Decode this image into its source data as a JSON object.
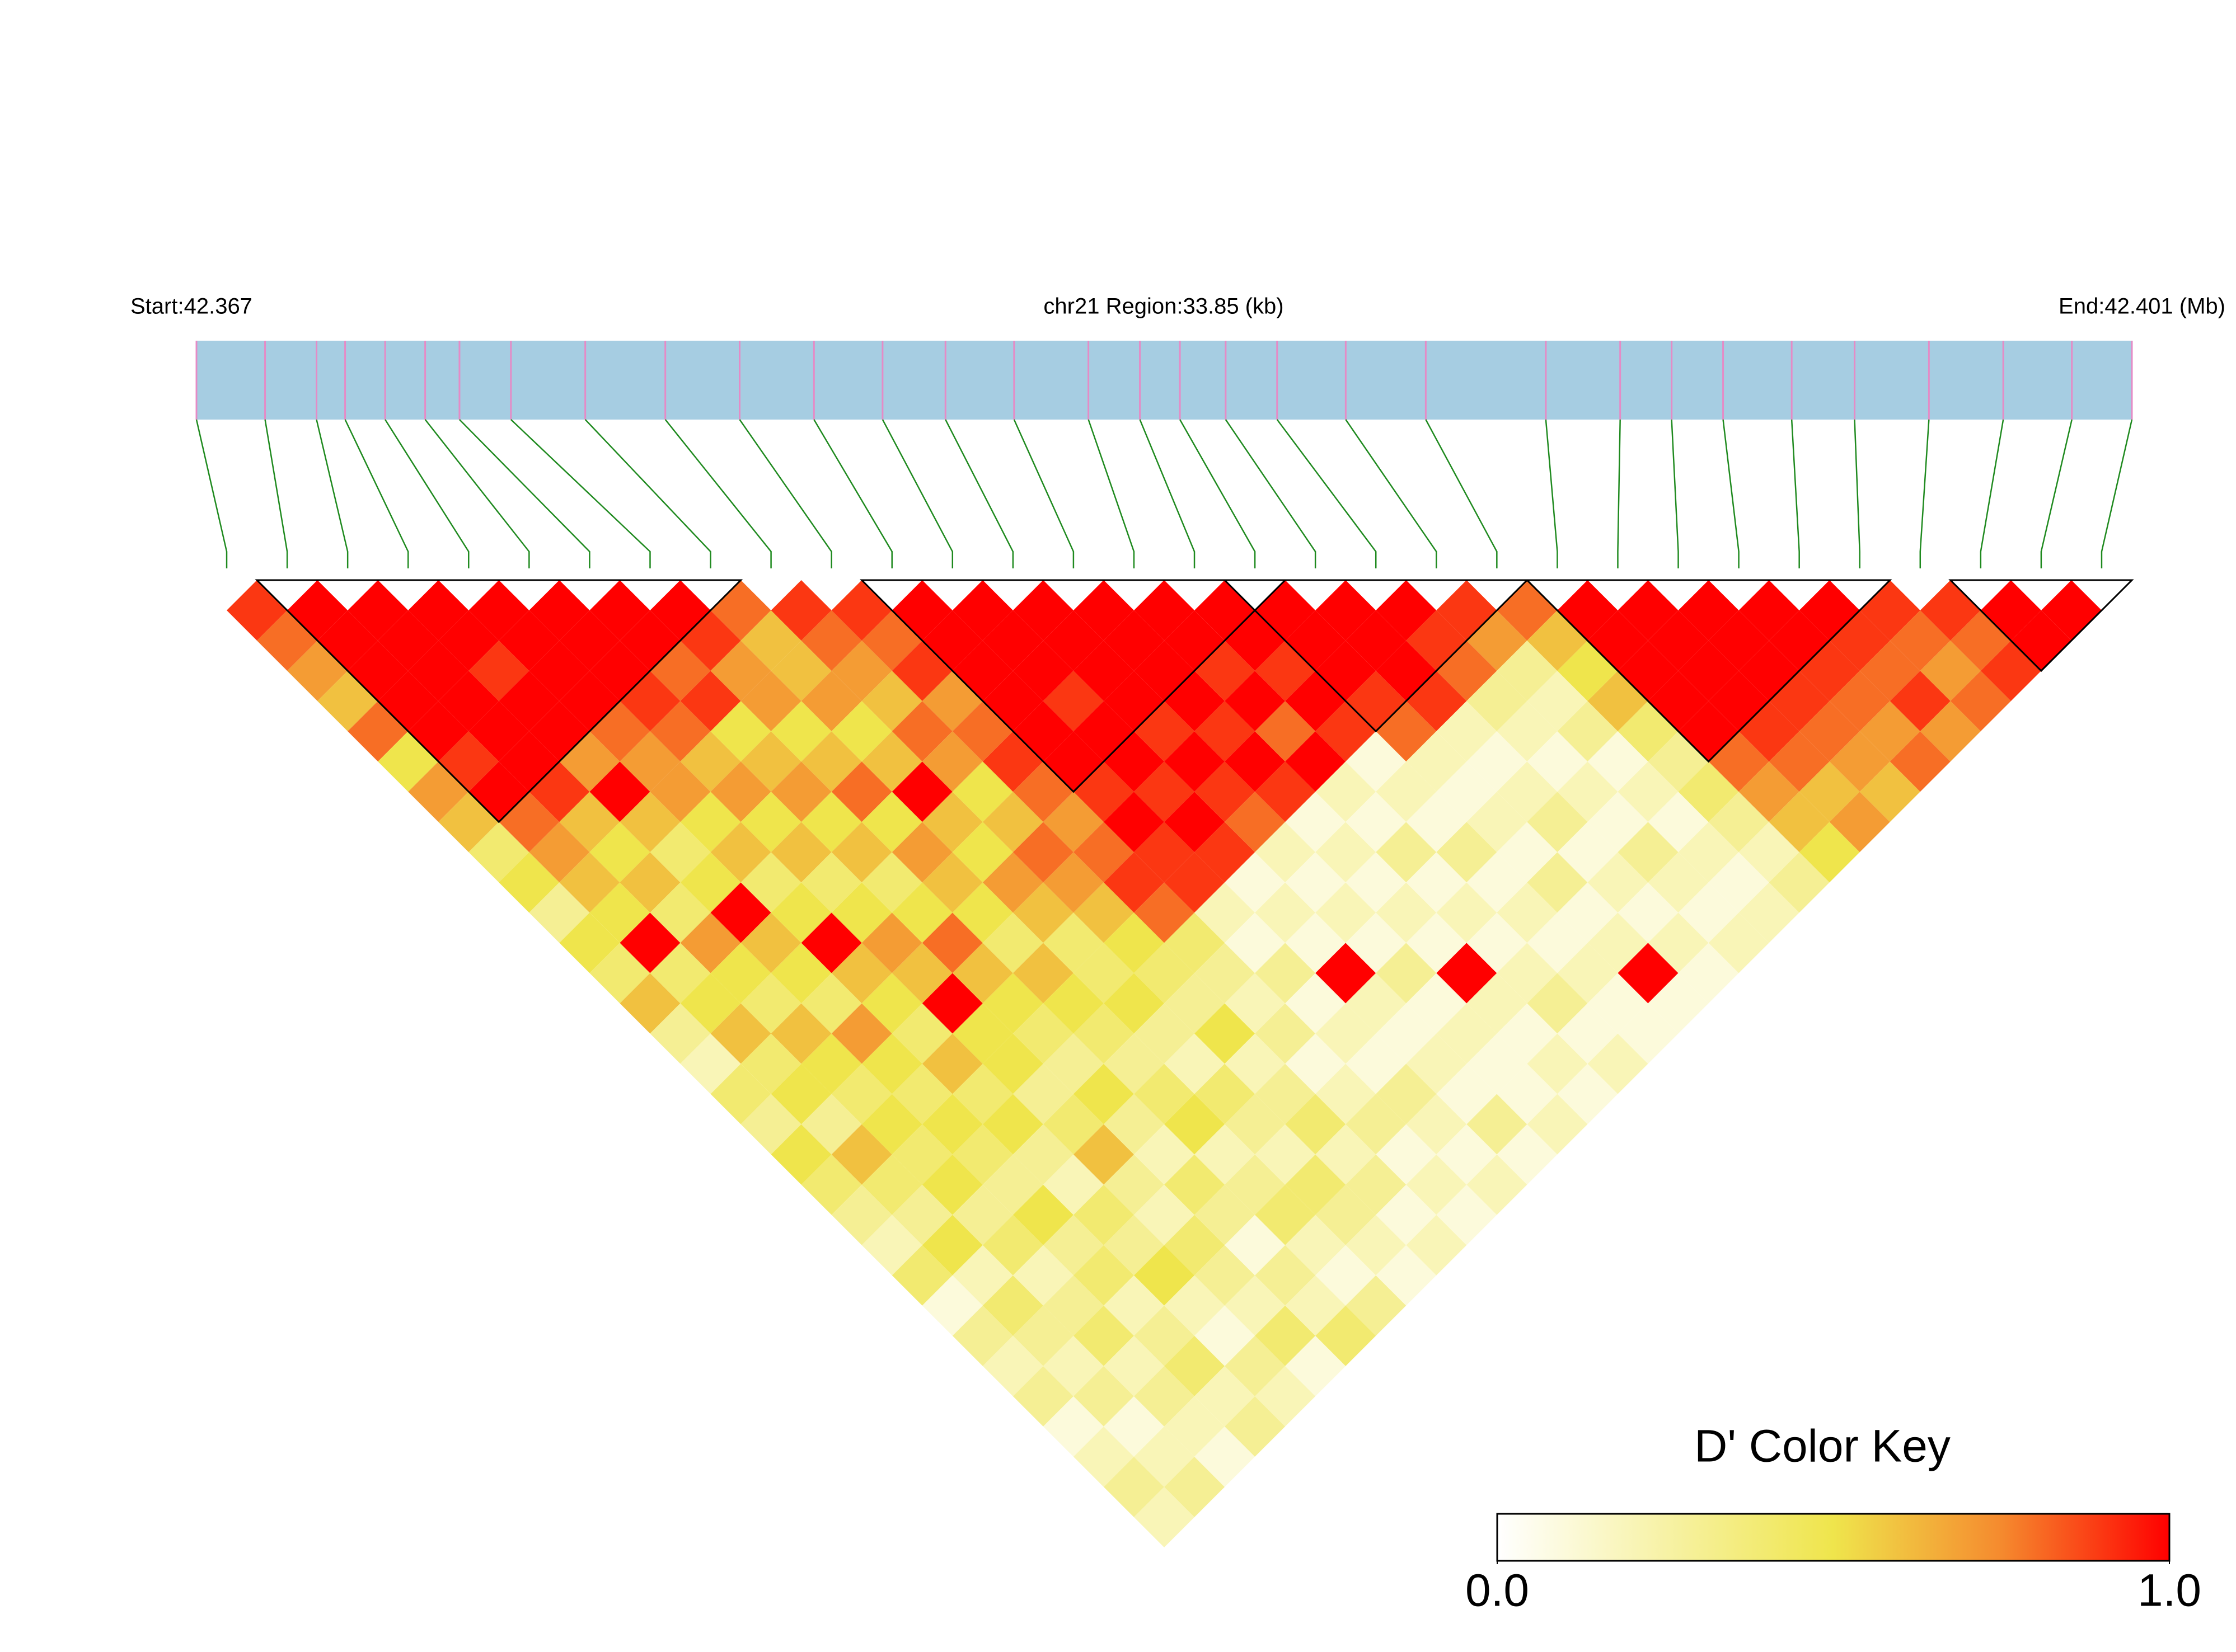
{
  "chart_data": {
    "type": "ld_heatmap",
    "start_label": "Start:42.367",
    "region_label": "chr21 Region:33.85 (kb)",
    "end_label": "End:42.401 (Mb)",
    "region_kb": 33.85,
    "snp_positions_kb": [
      0,
      1.2,
      2.1,
      2.6,
      3.3,
      4.0,
      4.6,
      5.5,
      6.8,
      8.2,
      9.5,
      10.8,
      12.0,
      13.1,
      14.3,
      15.6,
      16.5,
      17.2,
      18.0,
      18.9,
      20.1,
      21.5,
      23.6,
      24.9,
      25.8,
      26.7,
      27.9,
      29.0,
      30.3,
      31.6,
      32.8,
      33.85
    ],
    "bar_color": "#a6cde2",
    "marker_color": "#e58bc6",
    "connector_color": "#1f8a1f",
    "block_outline_color": "#000000",
    "dprime": [
      [
        0.9,
        0.8,
        0.7,
        0.6,
        0.8,
        0.5,
        0.7,
        0.6,
        0.4,
        0.5,
        0.3,
        0.5,
        0.4,
        0.6,
        0.3,
        0.2,
        0.4,
        0.3,
        0.5,
        0.4,
        0.3,
        0.2,
        0.4,
        0.1,
        0.3,
        0.2,
        0.3,
        0.1,
        0.2,
        0.3,
        0.2
      ],
      [
        1,
        1,
        1,
        1,
        1,
        0.9,
        1,
        0.8,
        0.7,
        0.6,
        0.5,
        1,
        0.4,
        0.5,
        0.6,
        0.4,
        0.5,
        0.3,
        0.6,
        0.4,
        0.3,
        0.5,
        0.2,
        0.4,
        0.3,
        0.2,
        0.3,
        0.1,
        0.2,
        0.3
      ],
      [
        1,
        1,
        1,
        1,
        1,
        1,
        0.9,
        0.6,
        0.5,
        0.6,
        0.4,
        0.7,
        0.5,
        0.4,
        0.6,
        0.5,
        0.4,
        0.5,
        0.4,
        0.5,
        0.3,
        0.4,
        0.2,
        0.3,
        0.4,
        0.2,
        0.3,
        0.2,
        0.1
      ],
      [
        1,
        1,
        0.9,
        1,
        1,
        0.7,
        1,
        0.6,
        0.4,
        0.5,
        1,
        0.6,
        0.5,
        0.4,
        0.7,
        0.5,
        0.4,
        0.5,
        0.4,
        0.3,
        0.5,
        0.3,
        0.4,
        0.2,
        0.3,
        0.4,
        0.2,
        0.3
      ],
      [
        1,
        1,
        1,
        1,
        0.8,
        0.7,
        0.7,
        0.5,
        0.6,
        0.4,
        0.5,
        1,
        0.6,
        0.5,
        0.4,
        0.6,
        0.4,
        0.5,
        0.3,
        0.2,
        0.4,
        0.3,
        0.5,
        0.2,
        0.1,
        0.3,
        0.2
      ],
      [
        1,
        1,
        1,
        0.9,
        0.8,
        0.6,
        0.7,
        0.5,
        0.6,
        0.4,
        0.5,
        0.7,
        0.6,
        1,
        0.5,
        0.5,
        0.3,
        0.4,
        0.6,
        0.3,
        0.2,
        0.4,
        0.3,
        0.2,
        0.4,
        0.1
      ],
      [
        1,
        1,
        0.8,
        0.9,
        0.5,
        0.6,
        0.7,
        0.5,
        0.6,
        0.4,
        0.5,
        0.8,
        0.6,
        0.5,
        0.4,
        0.3,
        0.5,
        0.3,
        0.2,
        0.4,
        0.3,
        0.1,
        0.3,
        0.2,
        0.4
      ],
      [
        1,
        0.9,
        0.7,
        0.7,
        0.5,
        0.6,
        0.8,
        0.5,
        0.7,
        0.6,
        0.5,
        0.4,
        0.6,
        0.5,
        0.4,
        0.3,
        0.4,
        0.5,
        0.2,
        0.3,
        0.4,
        0.2,
        0.1,
        0.3
      ],
      [
        0.8,
        0.6,
        0.6,
        0.7,
        0.5,
        0.6,
        1,
        0.6,
        0.5,
        0.7,
        0.6,
        0.4,
        0.4,
        0.5,
        0.3,
        0.2,
        0.4,
        0.3,
        0.2,
        0.4,
        0.3,
        0.2,
        0.1
      ],
      [
        0.9,
        0.8,
        0.7,
        0.6,
        0.8,
        0.7,
        0.5,
        0.6,
        0.8,
        0.7,
        0.6,
        0.5,
        0.4,
        0.3,
        0.5,
        0.2,
        0.3,
        0.4,
        0.2,
        0.3,
        0.1,
        0.2
      ],
      [
        0.9,
        0.8,
        0.9,
        0.7,
        0.8,
        0.9,
        0.8,
        0.7,
        0.8,
        0.9,
        0.8,
        0.4,
        0.3,
        0.2,
        0.3,
        0.1,
        0.2,
        0.3,
        0.1,
        0.2,
        0.1
      ],
      [
        1,
        1,
        1,
        1,
        1,
        1,
        0.9,
        1,
        0.9,
        0.9,
        0.2,
        0.1,
        0.3,
        0.1,
        0.2,
        0.1,
        0.3,
        0.2,
        0.1,
        0.2
      ],
      [
        1,
        1,
        1,
        0.9,
        1,
        1,
        0.9,
        1,
        0.9,
        0.1,
        0.2,
        0.1,
        1,
        0.2,
        0.1,
        0.2,
        0.1,
        0.3,
        0.1
      ],
      [
        1,
        1,
        1,
        1,
        0.9,
        1,
        0.9,
        0.8,
        0.2,
        0.1,
        0.2,
        0.1,
        0.3,
        0.1,
        0.2,
        0.1,
        0.1,
        0.2
      ],
      [
        1,
        1,
        1,
        1,
        0.9,
        1,
        0.9,
        0.1,
        0.2,
        0.1,
        0.2,
        0.1,
        1,
        0.2,
        0.1,
        0.2,
        0.1
      ],
      [
        1,
        1,
        0.9,
        1,
        0.8,
        1,
        0.2,
        0.1,
        0.3,
        0.1,
        0.2,
        0.1,
        0.2,
        0.3,
        0.1,
        0.2
      ],
      [
        1,
        1,
        0.9,
        1,
        0.9,
        0.1,
        0.2,
        0.1,
        0.3,
        0.1,
        0.2,
        0.1,
        0.2,
        0.1,
        0.1
      ],
      [
        1,
        1,
        1,
        0.9,
        0.8,
        0.2,
        0.1,
        0.2,
        0.1,
        0.3,
        0.1,
        0.2,
        1,
        0.1
      ],
      [
        1,
        1,
        1,
        0.9,
        0.2,
        0.1,
        0.2,
        0.3,
        0.1,
        0.2,
        0.1,
        0.2,
        0.1
      ],
      [
        1,
        0.9,
        0.8,
        0.3,
        0.2,
        0.1,
        0.2,
        0.1,
        0.3,
        0.2,
        0.1,
        0.2
      ],
      [
        0.9,
        0.7,
        0.3,
        0.2,
        0.3,
        0.1,
        0.2,
        0.1,
        0.2,
        0.1,
        0.2
      ],
      [
        0.8,
        0.6,
        0.5,
        0.6,
        0.4,
        0.3,
        0.4,
        0.3,
        0.2,
        0.3
      ],
      [
        1,
        1,
        1,
        1,
        1,
        0.8,
        0.7,
        0.6,
        0.5
      ],
      [
        1,
        1,
        1,
        1,
        0.9,
        0.8,
        0.6,
        0.7
      ],
      [
        1,
        1,
        1,
        0.9,
        0.8,
        0.7,
        0.6
      ],
      [
        1,
        1,
        0.9,
        0.8,
        0.7,
        0.8
      ],
      [
        1,
        0.9,
        0.8,
        0.9,
        0.7
      ],
      [
        0.9,
        0.8,
        0.7,
        0.8
      ],
      [
        0.9,
        0.8,
        0.9
      ],
      [
        1,
        1
      ],
      [
        1
      ]
    ],
    "blocks": [
      [
        1,
        8
      ],
      [
        11,
        17
      ],
      [
        17,
        21
      ],
      [
        22,
        27
      ],
      [
        29,
        31
      ]
    ],
    "color_key_title": "D' Color Key",
    "color_stops": [
      {
        "value": 0,
        "color": "#ffffff"
      },
      {
        "value": 0.5,
        "color": "#efe54c"
      },
      {
        "value": 0.75,
        "color": "#f58a2e"
      },
      {
        "value": 1,
        "color": "#ff0000"
      }
    ],
    "color_key_lim": [
      0,
      1
    ],
    "color_key_ticks": [
      {
        "value": 0,
        "label": "0.0"
      },
      {
        "value": 1,
        "label": "1.0"
      }
    ]
  }
}
